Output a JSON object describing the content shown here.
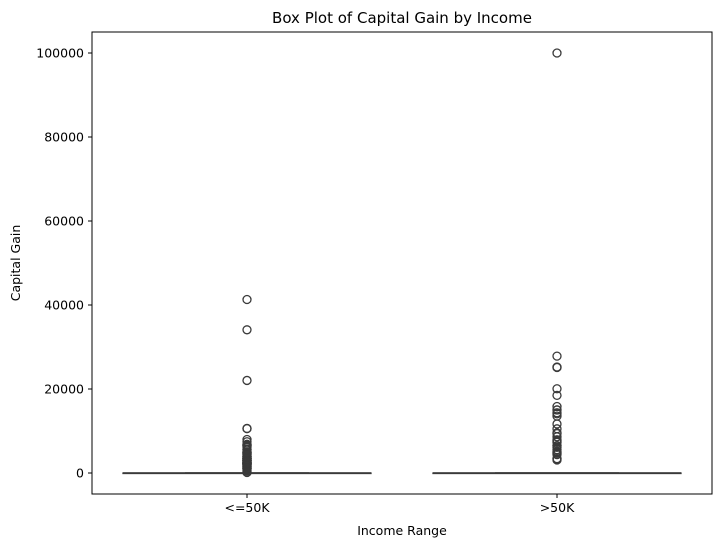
{
  "chart_data": {
    "type": "box",
    "title": "Box Plot of Capital Gain by Income",
    "xlabel": "Income Range",
    "ylabel": "Capital Gain",
    "ylim": [
      -5000,
      105000
    ],
    "yticks": [
      0,
      20000,
      40000,
      60000,
      80000,
      100000
    ],
    "ytick_labels": [
      "0",
      "20000",
      "40000",
      "60000",
      "80000",
      "100000"
    ],
    "grid": false,
    "colors": {
      "box": "#3a3a3a",
      "outlier_edge": "#3a3a3a"
    },
    "categories": [
      "<=50K",
      ">50K"
    ],
    "boxes": [
      {
        "name": "<=50K",
        "min": 0,
        "q1": 0,
        "median": 0,
        "q3": 0,
        "max": 0,
        "outliers": [
          114,
          401,
          594,
          914,
          991,
          1055,
          1086,
          1151,
          1173,
          1409,
          1424,
          1471,
          1506,
          1639,
          1797,
          1831,
          1848,
          2009,
          2036,
          2050,
          2062,
          2105,
          2174,
          2176,
          2202,
          2228,
          2290,
          2329,
          2346,
          2354,
          2387,
          2407,
          2414,
          2463,
          2538,
          2580,
          2597,
          2635,
          2653,
          2829,
          2885,
          2907,
          2936,
          2961,
          2964,
          2977,
          2993,
          3103,
          3137,
          3273,
          3325,
          3411,
          3418,
          3432,
          3456,
          3464,
          3471,
          3674,
          3781,
          3818,
          3887,
          3908,
          3942,
          4064,
          4101,
          4386,
          4416,
          4508,
          4650,
          4687,
          4787,
          4865,
          4931,
          4934,
          5013,
          5060,
          5455,
          5556,
          5721,
          6097,
          6360,
          6418,
          6497,
          6514,
          6723,
          6767,
          6849,
          7443,
          7978,
          10566,
          10605,
          22040,
          34095,
          41310
        ]
      },
      {
        "name": ">50K",
        "min": 0,
        "q1": 0,
        "median": 0,
        "q3": 0,
        "max": 0,
        "outliers": [
          3103,
          3325,
          3411,
          4386,
          4687,
          4787,
          4934,
          5178,
          5556,
          6097,
          6418,
          6514,
          7298,
          7430,
          7688,
          7896,
          8614,
          9386,
          9562,
          10520,
          11678,
          13550,
          14084,
          14344,
          15020,
          15024,
          15831,
          18481,
          20051,
          25124,
          25236,
          27828,
          99999
        ]
      }
    ]
  }
}
